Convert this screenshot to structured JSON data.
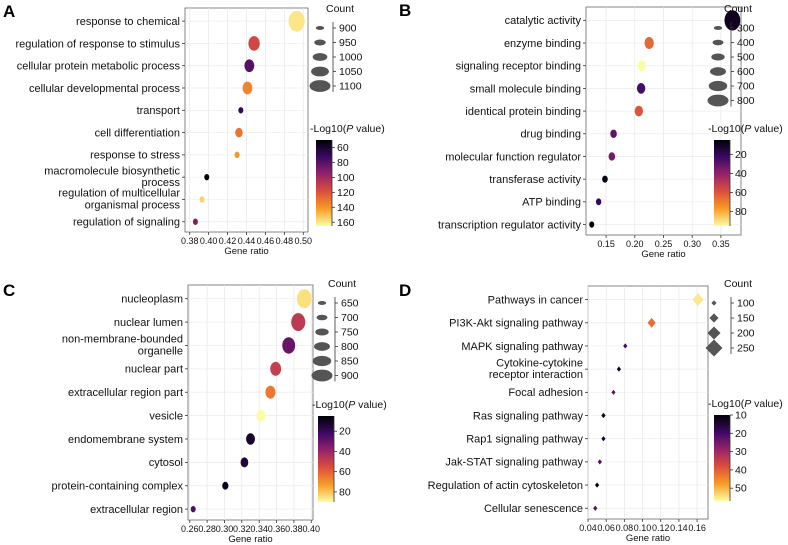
{
  "chart_data": [
    {
      "panel": "A",
      "type": "scatter",
      "marker": "circle",
      "xlabel": "Gene ratio",
      "xlim": [
        0.375,
        0.505
      ],
      "xticks": [
        "0.38",
        "0.40",
        "0.42",
        "0.44",
        "0.46",
        "0.48",
        "0.50"
      ],
      "categories": [
        "response to chemical",
        "regulation of response to stimulus",
        "cellular protein metabolic process",
        "cellular developmental process",
        "transport",
        "cell differentiation",
        "response to stress",
        "macromolecule biosynthetic process",
        "regulation of multicellular organismal process",
        "regulation of signaling"
      ],
      "category_lines": [
        [
          "response to chemical"
        ],
        [
          "regulation of response to stimulus"
        ],
        [
          "cellular protein metabolic process"
        ],
        [
          "cellular developmental process"
        ],
        [
          "transport"
        ],
        [
          "cell differentiation"
        ],
        [
          "response to stress"
        ],
        [
          "macromolecule biosynthetic",
          "process"
        ],
        [
          "regulation of multicellular",
          "organismal process"
        ],
        [
          "regulation of signaling"
        ]
      ],
      "x": [
        0.493,
        0.448,
        0.443,
        0.441,
        0.434,
        0.432,
        0.43,
        0.398,
        0.393,
        0.386
      ],
      "count": [
        1150,
        1030,
        1000,
        1000,
        900,
        950,
        900,
        900,
        880,
        860
      ],
      "neglog10p": [
        160,
        115,
        80,
        135,
        70,
        130,
        140,
        50,
        155,
        90
      ],
      "size_legend": {
        "title": "Count",
        "values": [
          900,
          950,
          1000,
          1050,
          1100
        ],
        "labels": [
          "900",
          "950",
          "1000",
          "1050",
          "1100"
        ]
      },
      "color_legend": {
        "title_pre": "-Log10(",
        "title_p": "P",
        "title_post": " value)",
        "range": [
          50,
          165
        ],
        "ticks": [
          60,
          80,
          100,
          120,
          140,
          160
        ],
        "tick_labels": [
          "60",
          "80",
          "100",
          "120",
          "140",
          "160"
        ]
      }
    },
    {
      "panel": "B",
      "type": "scatter",
      "marker": "circle",
      "xlabel": "Gene ratio",
      "xlim": [
        0.115,
        0.385
      ],
      "xticks": [
        "0.15",
        "0.20",
        "0.25",
        "0.30",
        "0.35"
      ],
      "categories": [
        "catalytic activity",
        "enzyme binding",
        "signaling receptor binding",
        "small molecule binding",
        "identical protein binding",
        "drug binding",
        "molecular function regulator",
        "transferase activity",
        "ATP binding",
        "transcription regulator activity"
      ],
      "category_lines": [
        [
          "catalytic activity"
        ],
        [
          "enzyme binding"
        ],
        [
          "signaling receptor binding"
        ],
        [
          "small molecule binding"
        ],
        [
          "identical protein binding"
        ],
        [
          "drug binding"
        ],
        [
          "molecular function regulator"
        ],
        [
          "transferase activity"
        ],
        [
          "ATP binding"
        ],
        [
          "transcription regulator activity"
        ]
      ],
      "x": [
        0.37,
        0.225,
        0.212,
        0.211,
        0.207,
        0.163,
        0.16,
        0.148,
        0.137,
        0.125
      ],
      "count": [
        850,
        520,
        470,
        470,
        470,
        380,
        380,
        330,
        320,
        300
      ],
      "neglog10p": [
        10,
        65,
        95,
        25,
        60,
        30,
        35,
        8,
        20,
        5
      ],
      "size_legend": {
        "title": "Count",
        "values": [
          300,
          400,
          500,
          600,
          700,
          800
        ],
        "labels": [
          "300",
          "400",
          "500",
          "600",
          "700",
          "800"
        ]
      },
      "color_legend": {
        "title_pre": "-Log10(",
        "title_p": "P",
        "title_post": " value)",
        "range": [
          5,
          95
        ],
        "ticks": [
          20,
          40,
          60,
          80
        ],
        "tick_labels": [
          "20",
          "40",
          "60",
          "80"
        ]
      }
    },
    {
      "panel": "C",
      "type": "scatter",
      "marker": "circle",
      "xlabel": "Gene ratio",
      "xlim": [
        0.258,
        0.402
      ],
      "xticks": [
        "0.26",
        "0.28",
        "0.30",
        "0.32",
        "0.34",
        "0.36",
        "0.38",
        "0.40"
      ],
      "categories": [
        "nucleoplasm",
        "nuclear lumen",
        "non-membrane-bounded organelle",
        "nuclear part",
        "extracellular region part",
        "vesicle",
        "endomembrane system",
        "cytosol",
        "protein-containing complex",
        "extracellular region"
      ],
      "category_lines": [
        [
          "nucleoplasm"
        ],
        [
          "nuclear lumen"
        ],
        [
          "non-membrane-bounded",
          "organelle"
        ],
        [
          "nuclear part"
        ],
        [
          "extracellular region part"
        ],
        [
          "vesicle"
        ],
        [
          "endomembrane system"
        ],
        [
          "cytosol"
        ],
        [
          "protein-containing complex"
        ],
        [
          "extracellular region"
        ]
      ],
      "x": [
        0.392,
        0.385,
        0.374,
        0.359,
        0.353,
        0.342,
        0.33,
        0.323,
        0.301,
        0.264
      ],
      "count": [
        900,
        880,
        850,
        800,
        780,
        750,
        750,
        720,
        680,
        640
      ],
      "neglog10p": [
        85,
        48,
        30,
        50,
        65,
        90,
        12,
        15,
        8,
        25
      ],
      "size_legend": {
        "title": "Count",
        "values": [
          650,
          700,
          750,
          800,
          850,
          900
        ],
        "labels": [
          "650",
          "700",
          "750",
          "800",
          "850",
          "900"
        ]
      },
      "color_legend": {
        "title_pre": "-Log10(",
        "title_p": "P",
        "title_post": " value)",
        "range": [
          5,
          90
        ],
        "ticks": [
          20,
          40,
          60,
          80
        ],
        "tick_labels": [
          "20",
          "40",
          "60",
          "80"
        ]
      }
    },
    {
      "panel": "D",
      "type": "scatter",
      "marker": "diamond",
      "xlabel": "Gene ratio",
      "xlim": [
        0.04,
        0.172
      ],
      "xticks": [
        "0.04",
        "0.06",
        "0.08",
        "0.10",
        "0.12",
        "0.14",
        "0.16"
      ],
      "categories": [
        "Pathways in cancer",
        "PI3K-Akt signaling pathway",
        "MAPK signaling pathway",
        "Cytokine-cytokine receptor interaction",
        "Focal adhesion",
        "Ras signaling pathway",
        "Rap1 signaling pathway",
        "Jak-STAT signaling pathway",
        "Regulation of actin cytoskeleton",
        "Cellular senescence"
      ],
      "category_lines": [
        [
          "Pathways in cancer"
        ],
        [
          "PI3K-Akt signaling pathway"
        ],
        [
          "MAPK signaling pathway"
        ],
        [
          "Cytokine-cytokine",
          "receptor interaction"
        ],
        [
          "Focal adhesion"
        ],
        [
          "Ras signaling pathway"
        ],
        [
          "Rap1 signaling pathway"
        ],
        [
          "Jak-STAT signaling pathway"
        ],
        [
          "Regulation of actin cytoskeleton"
        ],
        [
          "Cellular senescence"
        ]
      ],
      "x": [
        0.161,
        0.11,
        0.081,
        0.074,
        0.068,
        0.057,
        0.057,
        0.053,
        0.05,
        0.048
      ],
      "count": [
        200,
        160,
        100,
        90,
        80,
        70,
        70,
        60,
        60,
        55
      ],
      "neglog10p": [
        55,
        42,
        20,
        13,
        24,
        12,
        14,
        22,
        11,
        22
      ],
      "size_legend": {
        "title": "Count",
        "values": [
          100,
          150,
          200,
          250
        ],
        "labels": [
          "100",
          "150",
          "200",
          "250"
        ]
      },
      "color_legend": {
        "title_pre": "-Log10(",
        "title_p": "P",
        "title_post": " value)",
        "range": [
          10,
          57
        ],
        "ticks": [
          10,
          20,
          30,
          40,
          50
        ],
        "tick_labels": [
          "10",
          "20",
          "30",
          "40",
          "50"
        ]
      }
    }
  ]
}
